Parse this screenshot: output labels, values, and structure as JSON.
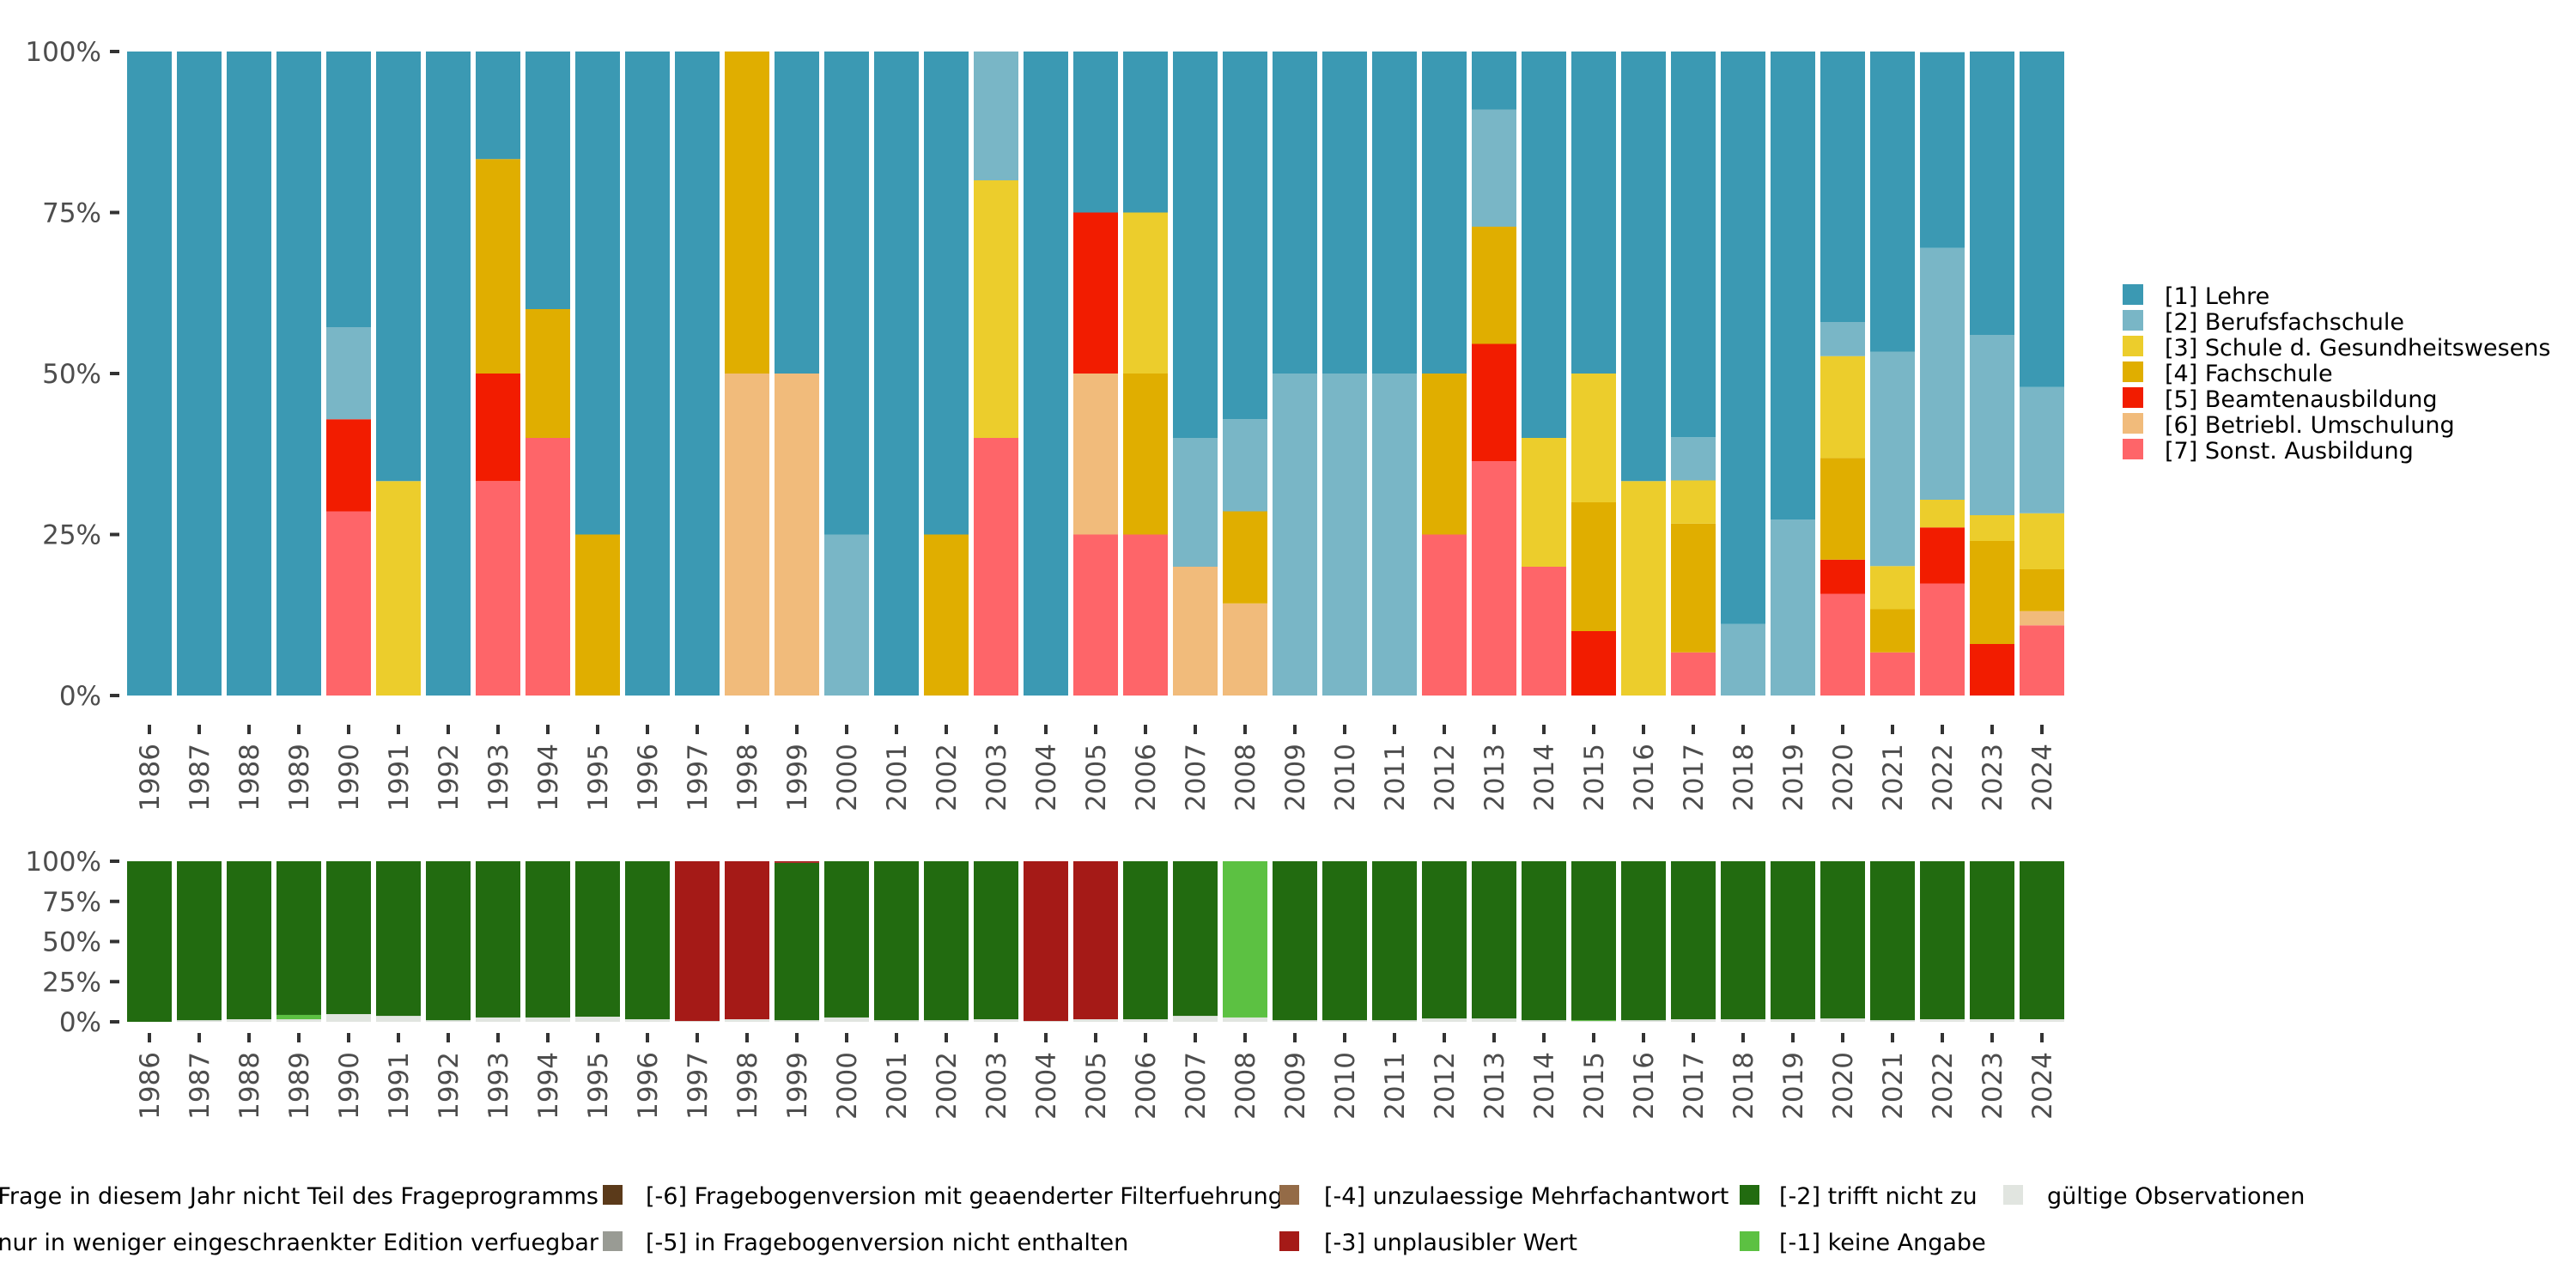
{
  "chart_data": [
    {
      "type": "bar",
      "stacked": true,
      "normalized": true,
      "title": "",
      "xlabel": "",
      "ylabel": "",
      "ylim": [
        0,
        100
      ],
      "y_ticks": [
        "0%",
        "25%",
        "50%",
        "75%",
        "100%"
      ],
      "legend_position": "right",
      "categories": [
        "1986",
        "1987",
        "1988",
        "1989",
        "1990",
        "1991",
        "1992",
        "1993",
        "1994",
        "1995",
        "1996",
        "1997",
        "1998",
        "1999",
        "2000",
        "2001",
        "2002",
        "2003",
        "2004",
        "2005",
        "2006",
        "2007",
        "2008",
        "2009",
        "2010",
        "2011",
        "2012",
        "2013",
        "2014",
        "2015",
        "2016",
        "2017",
        "2018",
        "2019",
        "2020",
        "2021",
        "2022",
        "2023",
        "2024"
      ],
      "series": [
        {
          "name": "[1] Lehre",
          "color": "#3b99b3",
          "values": [
            100,
            100,
            100,
            100,
            42.9,
            66.7,
            100,
            16.7,
            40,
            75,
            100,
            100,
            0,
            50,
            75,
            100,
            75,
            0,
            100,
            25,
            25,
            60,
            57.1,
            50,
            50,
            50,
            50,
            9.1,
            60,
            50,
            66.7,
            60,
            88.9,
            72.7,
            42.1,
            46.7,
            30.4,
            44,
            52.2
          ]
        },
        {
          "name": "[2] Berufsfachschule",
          "color": "#79b6c6",
          "values": [
            0,
            0,
            0,
            0,
            14.3,
            0,
            0,
            0,
            0,
            0,
            0,
            0,
            0,
            0,
            25,
            0,
            0,
            20,
            0,
            0,
            0,
            20,
            14.3,
            50,
            50,
            50,
            0,
            18.2,
            0,
            0,
            0,
            6.7,
            11.1,
            27.3,
            5.3,
            33.3,
            39.1,
            28,
            19.6
          ]
        },
        {
          "name": "[3] Schule d. Gesundheitswesens",
          "color": "#eccd2c",
          "values": [
            0,
            0,
            0,
            0,
            0,
            33.3,
            0,
            0,
            0,
            0,
            0,
            0,
            0,
            0,
            0,
            0,
            0,
            40,
            0,
            0,
            25,
            0,
            0,
            0,
            0,
            0,
            0,
            0,
            20,
            20,
            33.3,
            6.7,
            0,
            0,
            15.8,
            6.7,
            4.3,
            4,
            8.7
          ]
        },
        {
          "name": "[4] Fachschule",
          "color": "#e0ae00",
          "values": [
            0,
            0,
            0,
            0,
            0,
            0,
            0,
            33.3,
            20,
            25,
            0,
            0,
            50,
            0,
            0,
            0,
            25,
            0,
            0,
            0,
            25,
            0,
            14.3,
            0,
            0,
            0,
            25,
            18.2,
            0,
            20,
            0,
            20,
            0,
            0,
            15.8,
            6.7,
            0,
            16,
            6.5
          ]
        },
        {
          "name": "[5] Beamtenausbildung",
          "color": "#f21c00",
          "values": [
            0,
            0,
            0,
            0,
            14.3,
            0,
            0,
            16.7,
            0,
            0,
            0,
            0,
            0,
            0,
            0,
            0,
            0,
            0,
            0,
            25,
            0,
            0,
            0,
            0,
            0,
            0,
            0,
            18.2,
            0,
            10,
            0,
            0,
            0,
            0,
            5.3,
            0,
            8.7,
            8,
            0
          ]
        },
        {
          "name": "[6] Betriebl. Umschulung",
          "color": "#f1bb7b",
          "values": [
            0,
            0,
            0,
            0,
            0,
            0,
            0,
            0,
            0,
            0,
            0,
            0,
            50,
            50,
            0,
            0,
            0,
            0,
            0,
            25,
            0,
            20,
            14.3,
            0,
            0,
            0,
            0,
            0,
            0,
            0,
            0,
            0,
            0,
            0,
            0,
            0,
            0,
            0,
            2.2
          ]
        },
        {
          "name": "[7] Sonst. Ausbildung",
          "color": "#fe6569",
          "values": [
            0,
            0,
            0,
            0,
            28.6,
            0,
            0,
            33.3,
            40,
            0,
            0,
            0,
            0,
            0,
            0,
            0,
            0,
            40,
            0,
            25,
            25,
            0,
            0,
            0,
            0,
            0,
            25,
            36.4,
            20,
            0,
            0,
            6.7,
            0,
            0,
            15.8,
            6.7,
            17.4,
            0,
            10.9
          ]
        }
      ]
    },
    {
      "type": "bar",
      "stacked": true,
      "normalized": true,
      "title": "",
      "xlabel": "",
      "ylabel": "",
      "ylim": [
        0,
        100
      ],
      "y_ticks": [
        "0%",
        "25%",
        "50%",
        "75%",
        "100%"
      ],
      "legend_position": "bottom",
      "categories": [
        "1986",
        "1987",
        "1988",
        "1989",
        "1990",
        "1991",
        "1992",
        "1993",
        "1994",
        "1995",
        "1996",
        "1997",
        "1998",
        "1999",
        "2000",
        "2001",
        "2002",
        "2003",
        "2004",
        "2005",
        "2006",
        "2007",
        "2008",
        "2009",
        "2010",
        "2011",
        "2012",
        "2013",
        "2014",
        "2015",
        "2016",
        "2017",
        "2018",
        "2019",
        "2020",
        "2021",
        "2022",
        "2023",
        "2024"
      ],
      "legend": [
        {
          "name": "Frage in diesem Jahr nicht Teil des Frageprogramms",
          "color": ""
        },
        {
          "name": "nur in weniger eingeschraenkter Edition verfuegbar",
          "color": ""
        },
        {
          "name": "[-6] Fragebogenversion mit geaenderter Filterfuehrung",
          "color": "#5b3a1a"
        },
        {
          "name": "[-5] in Fragebogenversion nicht enthalten",
          "color": "#999b94"
        },
        {
          "name": "[-4] unzulaessige Mehrfachantwort",
          "color": "#946b47"
        },
        {
          "name": "[-3] unplausibler Wert",
          "color": "#a51a17"
        },
        {
          "name": "[-2] trifft nicht zu",
          "color": "#226b10"
        },
        {
          "name": "[-1] keine Angabe",
          "color": "#5cc142"
        },
        {
          "name": "gültige Observationen",
          "color": "#e1e5e0"
        }
      ],
      "series": [
        {
          "name": "gültige Observationen",
          "color": "#e1e5e0",
          "values": [
            0,
            1,
            1.6,
            1.6,
            4.8,
            3.7,
            1,
            2.7,
            2.7,
            3.2,
            1.6,
            0.5,
            1.6,
            1,
            2.7,
            1,
            1,
            1.6,
            0.5,
            1.6,
            1.6,
            3.7,
            2.7,
            1,
            1,
            1,
            2.1,
            2.1,
            1,
            0.5,
            1,
            1.6,
            1.6,
            1.6,
            2.1,
            1,
            1.6,
            1.6,
            1.6
          ]
        },
        {
          "name": "[-1] keine Angabe",
          "color": "#5cc142",
          "values": [
            0,
            0,
            0,
            2.7,
            0,
            0,
            0,
            0,
            0,
            0,
            0,
            0,
            0,
            0,
            0,
            0,
            0,
            0,
            0,
            0,
            0,
            0,
            97.3,
            0,
            0,
            0,
            0,
            0,
            0,
            0.5,
            0,
            0,
            0,
            0,
            0,
            0,
            0,
            0,
            0
          ]
        },
        {
          "name": "[-2] trifft nicht zu",
          "color": "#226b10",
          "values": [
            100,
            99,
            98.4,
            95.7,
            95.2,
            96.3,
            99,
            97.3,
            97.3,
            96.8,
            98.4,
            0,
            0,
            98,
            97.3,
            99,
            99,
            98.4,
            0,
            0,
            98.4,
            96.3,
            0,
            99,
            99,
            99,
            97.9,
            97.9,
            99,
            99,
            99,
            98.4,
            98.4,
            98.4,
            97.9,
            99,
            98.4,
            98.4,
            98.4
          ]
        },
        {
          "name": "[-3] unplausibler Wert",
          "color": "#a51a17",
          "values": [
            0,
            0,
            0,
            0,
            0,
            0,
            0,
            0,
            0,
            0,
            0,
            99.5,
            98.4,
            1,
            0,
            0,
            0,
            0,
            99.5,
            98.4,
            0,
            0,
            0,
            0,
            0,
            0,
            0,
            0,
            0,
            0,
            0,
            0,
            0,
            0,
            0,
            0,
            0,
            0,
            0
          ]
        }
      ]
    }
  ]
}
